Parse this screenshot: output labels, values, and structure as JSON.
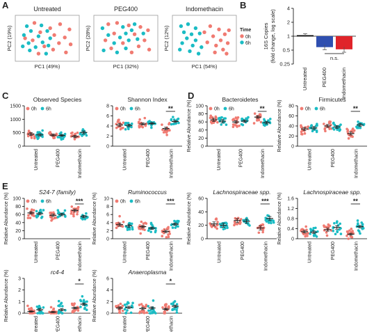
{
  "colors": {
    "h0": "#F07B72",
    "h6": "#1BBCC4",
    "bar_black": "#000000",
    "bar_blue": "#2F4FB0",
    "bar_red": "#E0242A"
  },
  "panel_letters": [
    "A",
    "B",
    "C",
    "D",
    "E"
  ],
  "legend": {
    "time_title": "Time",
    "labels": [
      "0h",
      "6h"
    ]
  },
  "chart_data": [
    {
      "type": "scatter",
      "panel": "A",
      "title": "Untreated",
      "xlabel": "PC1 (49%)",
      "ylabel": "PC2 (19%)",
      "series": [
        {
          "name": "0h",
          "points": [
            [
              0.28,
              0.12
            ],
            [
              0.72,
              0.15
            ],
            [
              0.55,
              0.25
            ],
            [
              0.88,
              0.28
            ],
            [
              0.38,
              0.35
            ],
            [
              0.62,
              0.42
            ],
            [
              0.8,
              0.48
            ],
            [
              0.25,
              0.55
            ],
            [
              0.7,
              0.62
            ],
            [
              0.9,
              0.65
            ],
            [
              0.45,
              0.7
            ],
            [
              0.6,
              0.78
            ],
            [
              0.82,
              0.85
            ],
            [
              0.35,
              0.88
            ],
            [
              0.12,
              0.5
            ]
          ]
        },
        {
          "name": "6h",
          "points": [
            [
              0.15,
              0.2
            ],
            [
              0.4,
              0.18
            ],
            [
              0.22,
              0.32
            ],
            [
              0.5,
              0.32
            ],
            [
              0.1,
              0.42
            ],
            [
              0.35,
              0.45
            ],
            [
              0.55,
              0.5
            ],
            [
              0.18,
              0.62
            ],
            [
              0.42,
              0.6
            ],
            [
              0.3,
              0.72
            ],
            [
              0.52,
              0.68
            ],
            [
              0.2,
              0.8
            ],
            [
              0.08,
              0.7
            ],
            [
              0.48,
              0.88
            ]
          ]
        }
      ]
    },
    {
      "type": "scatter",
      "panel": "A",
      "title": "PEG400",
      "xlabel": "PC1 (32%)",
      "ylabel": "PC2 (28%)",
      "series": [
        {
          "name": "0h",
          "points": [
            [
              0.2,
              0.15
            ],
            [
              0.35,
              0.12
            ],
            [
              0.55,
              0.18
            ],
            [
              0.75,
              0.22
            ],
            [
              0.88,
              0.3
            ],
            [
              0.3,
              0.38
            ],
            [
              0.65,
              0.4
            ],
            [
              0.82,
              0.55
            ],
            [
              0.45,
              0.62
            ],
            [
              0.72,
              0.7
            ],
            [
              0.9,
              0.78
            ],
            [
              0.6,
              0.85
            ],
            [
              0.15,
              0.55
            ],
            [
              0.25,
              0.75
            ]
          ]
        },
        {
          "name": "6h",
          "points": [
            [
              0.1,
              0.25
            ],
            [
              0.45,
              0.22
            ],
            [
              0.6,
              0.3
            ],
            [
              0.2,
              0.42
            ],
            [
              0.4,
              0.48
            ],
            [
              0.55,
              0.55
            ],
            [
              0.7,
              0.52
            ],
            [
              0.3,
              0.62
            ],
            [
              0.5,
              0.75
            ],
            [
              0.35,
              0.85
            ],
            [
              0.12,
              0.8
            ],
            [
              0.8,
              0.38
            ],
            [
              0.65,
              0.15
            ],
            [
              0.5,
              0.38
            ]
          ]
        }
      ]
    },
    {
      "type": "scatter",
      "panel": "A",
      "title": "Indomethacin",
      "xlabel": "PC1 (54%)",
      "ylabel": "PC2 (12%)",
      "series": [
        {
          "name": "0h",
          "points": [
            [
              0.6,
              0.2
            ],
            [
              0.75,
              0.28
            ],
            [
              0.85,
              0.4
            ],
            [
              0.65,
              0.45
            ],
            [
              0.78,
              0.55
            ],
            [
              0.9,
              0.62
            ],
            [
              0.7,
              0.68
            ],
            [
              0.82,
              0.78
            ],
            [
              0.55,
              0.6
            ],
            [
              0.92,
              0.3
            ],
            [
              0.68,
              0.85
            ],
            [
              0.5,
              0.35
            ],
            [
              0.88,
              0.88
            ]
          ]
        },
        {
          "name": "6h",
          "points": [
            [
              0.1,
              0.2
            ],
            [
              0.22,
              0.15
            ],
            [
              0.35,
              0.25
            ],
            [
              0.15,
              0.35
            ],
            [
              0.28,
              0.4
            ],
            [
              0.42,
              0.38
            ],
            [
              0.2,
              0.5
            ],
            [
              0.35,
              0.55
            ],
            [
              0.12,
              0.62
            ],
            [
              0.3,
              0.68
            ],
            [
              0.45,
              0.72
            ],
            [
              0.25,
              0.82
            ],
            [
              0.4,
              0.88
            ],
            [
              0.08,
              0.78
            ]
          ]
        }
      ]
    },
    {
      "type": "bar",
      "panel": "B",
      "ylabel": "16S Copies (fold change, log scale)",
      "y_log": true,
      "ylim": [
        0.25,
        4
      ],
      "yticks": [
        "4",
        "2",
        "1",
        "0.5",
        "0.25"
      ],
      "categories": [
        "Untreated",
        "PEG400",
        "Indomethacin"
      ],
      "values": [
        1.05,
        0.58,
        0.52
      ],
      "errors": [
        0.08,
        0.07,
        0.07
      ],
      "bar_colors": [
        "bar_black",
        "bar_blue",
        "bar_red"
      ],
      "annotation": "n.s."
    },
    {
      "type": "dotplot",
      "panel": "C",
      "title": "Observed Species",
      "ylim": [
        0,
        1500
      ],
      "yticks": [
        "0",
        "500",
        "1000",
        "1500"
      ],
      "ylabel": "",
      "categories": [
        "Untreated",
        "PEG400",
        "Indomethacin"
      ],
      "means": [
        [
          450,
          420
        ],
        [
          410,
          400
        ],
        [
          360,
          510
        ]
      ],
      "sem": [
        [
          50,
          45
        ],
        [
          40,
          35
        ],
        [
          45,
          55
        ]
      ],
      "spread": [
        180,
        180
      ],
      "significance": []
    },
    {
      "type": "dotplot",
      "panel": "C",
      "title": "Shannon Index",
      "ylim": [
        0,
        8
      ],
      "yticks": [
        "0",
        "2",
        "4",
        "6",
        "8"
      ],
      "ylabel": "",
      "categories": [
        "Untreated",
        "PEG400",
        "Indomethacin"
      ],
      "means": [
        [
          4.2,
          4.1
        ],
        [
          4.4,
          4.5
        ],
        [
          3.5,
          4.9
        ]
      ],
      "sem": [
        [
          0.3,
          0.25
        ],
        [
          0.2,
          0.2
        ],
        [
          0.25,
          0.2
        ]
      ],
      "spread": [
        1.3,
        1.0
      ],
      "significance": [
        {
          "group": 2,
          "label": "**"
        }
      ]
    },
    {
      "type": "dotplot",
      "panel": "D",
      "title": "Bacteroidetes",
      "ylim": [
        0,
        100
      ],
      "yticks": [
        "0",
        "20",
        "40",
        "60",
        "80",
        "100"
      ],
      "ylabel": "Relative Abundance (%)",
      "categories": [
        "Untreated",
        "PEG400",
        "Indomethacin"
      ],
      "means": [
        [
          65,
          62
        ],
        [
          60,
          62
        ],
        [
          72,
          58
        ]
      ],
      "sem": [
        [
          4,
          4
        ],
        [
          3,
          3
        ],
        [
          3,
          3
        ]
      ],
      "spread": [
        18,
        14
      ],
      "significance": [
        {
          "group": 2,
          "label": "**"
        }
      ]
    },
    {
      "type": "dotplot",
      "panel": "D",
      "title": "Firmicutes",
      "ylim": [
        0,
        80
      ],
      "yticks": [
        "0",
        "20",
        "40",
        "60",
        "80"
      ],
      "ylabel": "Relative Abundance (%)",
      "categories": [
        "Untreated",
        "PEG400",
        "Indomethacin"
      ],
      "means": [
        [
          34,
          36
        ],
        [
          40,
          38
        ],
        [
          25,
          42
        ]
      ],
      "sem": [
        [
          3,
          3
        ],
        [
          3,
          3
        ],
        [
          3,
          3
        ]
      ],
      "spread": [
        14,
        10
      ],
      "significance": [
        {
          "group": 2,
          "label": "**"
        }
      ]
    },
    {
      "type": "dotplot",
      "panel": "E",
      "title": "S24-7 (family)",
      "title_italic": true,
      "ylim": [
        0,
        100
      ],
      "yticks": [
        "0",
        "20",
        "40",
        "60",
        "80",
        "100"
      ],
      "ylabel": "Relative Abundance (%)",
      "categories": [
        "Untreated",
        "PEG400",
        "Indomethacin"
      ],
      "means": [
        [
          64,
          62
        ],
        [
          58,
          60
        ],
        [
          70,
          55
        ]
      ],
      "sem": [
        [
          3,
          3
        ],
        [
          3,
          3
        ],
        [
          3,
          3
        ]
      ],
      "spread": [
        15,
        12
      ],
      "significance": [
        {
          "group": 2,
          "label": "***"
        }
      ]
    },
    {
      "type": "dotplot",
      "panel": "E",
      "title": "Ruminococcus",
      "title_italic": true,
      "ylim": [
        0,
        10
      ],
      "yticks": [
        "0",
        "2",
        "4",
        "6",
        "8",
        "10"
      ],
      "ylabel": "Relative Abundance (%)",
      "categories": [
        "Untreated",
        "PEG400",
        "Indomethacin"
      ],
      "means": [
        [
          3.5,
          3.2
        ],
        [
          3.0,
          2.6
        ],
        [
          1.8,
          3.6
        ]
      ],
      "sem": [
        [
          0.4,
          0.4
        ],
        [
          0.3,
          0.3
        ],
        [
          0.3,
          0.3
        ]
      ],
      "spread": [
        2.2,
        1.5
      ],
      "significance": [
        {
          "group": 2,
          "label": "***"
        }
      ]
    },
    {
      "type": "dotplot",
      "panel": "E",
      "title": "Lachnospiraceae spp.",
      "title_italic": true,
      "ylim": [
        0,
        60
      ],
      "yticks": [
        "0",
        "20",
        "40",
        "60"
      ],
      "ylabel": "Relative Abundance (%)",
      "categories": [
        "Untreated",
        "PEG400",
        "Indomethacin"
      ],
      "means": [
        [
          22,
          20
        ],
        [
          27,
          26
        ],
        [
          16,
          30
        ]
      ],
      "sem": [
        [
          3,
          3
        ],
        [
          3,
          3
        ],
        [
          3,
          3
        ]
      ],
      "spread": [
        10,
        8
      ],
      "significance": [
        {
          "group": 2,
          "label": "***"
        }
      ]
    },
    {
      "type": "dotplot",
      "panel": "E",
      "title": "Lachnospiraceae spp.",
      "title_italic": true,
      "ylim": [
        0,
        1.6
      ],
      "yticks": [
        "0",
        "0.4",
        "0.8",
        "1.2",
        "1.6"
      ],
      "ylabel": "Relative Abundance (%)",
      "categories": [
        "Untreated",
        "PEG400",
        "Indomethacin"
      ],
      "means": [
        [
          0.28,
          0.26
        ],
        [
          0.36,
          0.45
        ],
        [
          0.18,
          0.48
        ]
      ],
      "sem": [
        [
          0.05,
          0.05
        ],
        [
          0.06,
          0.07
        ],
        [
          0.04,
          0.05
        ]
      ],
      "spread": [
        0.25,
        0.3
      ],
      "significance": [
        {
          "group": 2,
          "label": "**"
        }
      ]
    },
    {
      "type": "dotplot",
      "panel": "E",
      "title": "rc4-4",
      "title_italic": true,
      "ylim": [
        0,
        3
      ],
      "yticks": [
        "0",
        "1",
        "2",
        "3"
      ],
      "ylabel": "Relative Abundance (%)",
      "categories": [
        "Untreated",
        "PEG400",
        "Indomethacin"
      ],
      "means": [
        [
          0.15,
          0.3
        ],
        [
          0.1,
          0.3
        ],
        [
          0.45,
          0.78
        ]
      ],
      "sem": [
        [
          0.05,
          0.1
        ],
        [
          0.05,
          0.1
        ],
        [
          0.08,
          0.1
        ]
      ],
      "spread": [
        0.6,
        0.8
      ],
      "significance": [
        {
          "group": 2,
          "label": "*"
        }
      ]
    },
    {
      "type": "dotplot",
      "panel": "E",
      "title": "Anaeroplasma",
      "title_italic": true,
      "ylim": [
        0,
        6
      ],
      "yticks": [
        "0",
        "2",
        "4",
        "6"
      ],
      "ylabel": "Relative Abundance (%)",
      "categories": [
        "Untreated",
        "PEG400",
        "Indomethacin"
      ],
      "means": [
        [
          0.9,
          1.0
        ],
        [
          0.8,
          0.9
        ],
        [
          0.7,
          1.2
        ]
      ],
      "sem": [
        [
          0.2,
          0.2
        ],
        [
          0.2,
          0.2
        ],
        [
          0.15,
          0.2
        ]
      ],
      "spread": [
        1.2,
        1.5
      ],
      "significance": [
        {
          "group": 2,
          "label": "*"
        }
      ]
    }
  ]
}
